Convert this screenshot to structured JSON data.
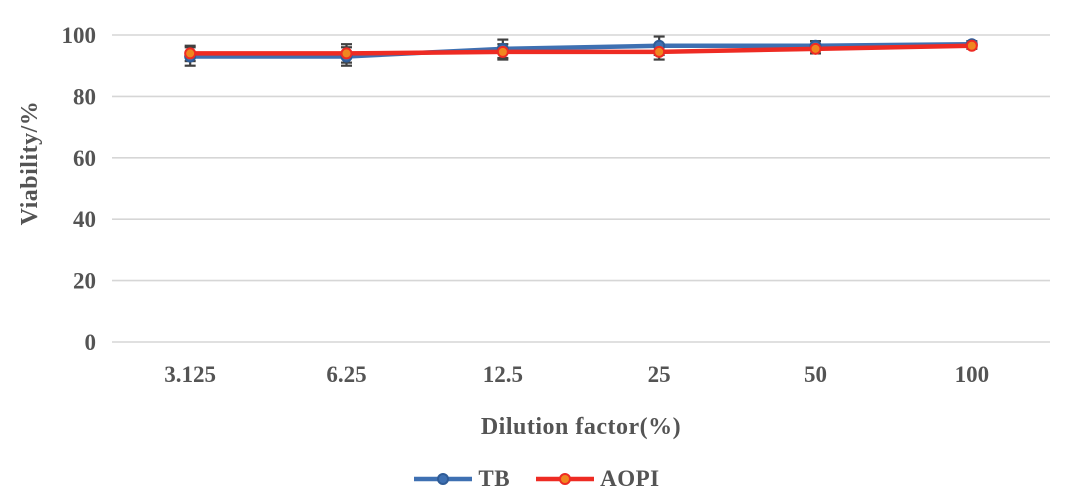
{
  "chart_data": {
    "type": "line",
    "title": "",
    "xlabel": "Dilution factor(%)",
    "ylabel": "Viability/%",
    "categories": [
      "3.125",
      "6.25",
      "12.5",
      "25",
      "50",
      "100"
    ],
    "yticks": [
      0,
      20,
      40,
      60,
      80,
      100
    ],
    "ylim": [
      0,
      100
    ],
    "grid": true,
    "legend_position": "bottom",
    "series": [
      {
        "name": "TB",
        "color": "#3E70B2",
        "marker": "circle",
        "marker_fill": "#3E70B2",
        "marker_stroke": "#2F5C97",
        "values": [
          93,
          93,
          95.5,
          96.5,
          96.5,
          97
        ],
        "errors": [
          3,
          3,
          3,
          3,
          1.5,
          1
        ]
      },
      {
        "name": "AOPI",
        "color": "#EE2B23",
        "marker": "circle",
        "marker_fill": "#F0861F",
        "marker_stroke": "#EE2B23",
        "values": [
          94,
          94,
          94.5,
          94.5,
          95.5,
          96.5
        ],
        "errors": [
          2.5,
          3,
          2.5,
          2.5,
          1.5,
          1
        ]
      }
    ],
    "colors": {
      "gridline": "#D6D6D6",
      "error_bar": "#404040",
      "text": "#545454"
    }
  }
}
